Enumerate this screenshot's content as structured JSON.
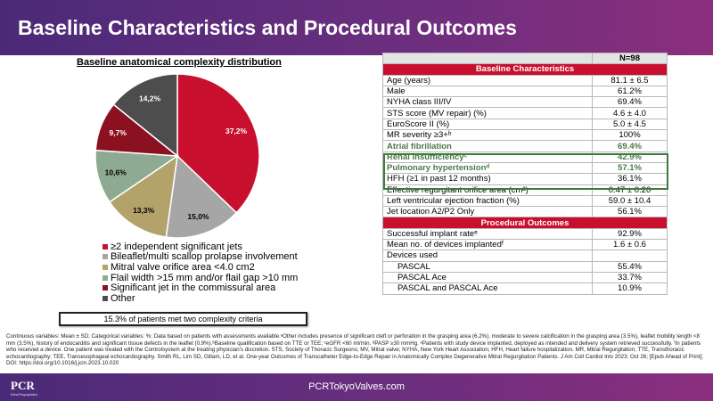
{
  "title": "Baseline Characteristics and Procedural Outcomes",
  "chart_data": {
    "type": "pie",
    "title": "Baseline anatomical complexity distribution",
    "slices": [
      {
        "label": "≥2 independent significant jets",
        "value": 37.2,
        "display": "37,2%",
        "color": "#c8102e"
      },
      {
        "label": "Bileaflet/multi scallop prolapse involvement",
        "value": 15.0,
        "display": "15,0%",
        "color": "#a6a6a6"
      },
      {
        "label": "Mitral valve orifice area <4.0 cm2",
        "value": 13.3,
        "display": "13,3%",
        "color": "#b3a26a"
      },
      {
        "label": "Flail width >15 mm and/or flail gap >10 mm",
        "value": 10.6,
        "display": "10,6%",
        "color": "#8faa92"
      },
      {
        "label": "Significant jet in the commissural area",
        "value": 9.7,
        "display": "9,7%",
        "color": "#8b1020"
      },
      {
        "label": "Other",
        "value": 14.2,
        "display": "14,2%",
        "color": "#4d4d4d"
      }
    ]
  },
  "criteria_note": "15.3% of patients met two complexity criteria",
  "table": {
    "n_label": "N=98",
    "sections": [
      {
        "heading": "Baseline Characteristics",
        "rows": [
          {
            "label": "Age (years)",
            "value": "81.1 ± 6.5"
          },
          {
            "label": "Male",
            "value": "61.2%"
          },
          {
            "label": "NYHA class III/IV",
            "value": "69.4%"
          },
          {
            "label": "STS score (MV repair) (%)",
            "value": "4.6 ± 4.0"
          },
          {
            "label": "EuroScore II (%)",
            "value": "5.0 ± 4.5"
          },
          {
            "label": "MR severity ≥3+ᵇ",
            "value": "100%"
          },
          {
            "label": "Atrial fibrillation",
            "value": "69.4%",
            "highlight": true
          },
          {
            "label": "Renal insufficiencyᶜ",
            "value": "42.9%",
            "highlight": true
          },
          {
            "label": "Pulmonary hypertensionᵈ",
            "value": "57.1%",
            "highlight": true
          },
          {
            "label": "HFH (≥1 in past 12 months)",
            "value": "36.1%"
          },
          {
            "label": "Effective regurgitant orifice area (cm²)",
            "value": "0.47 ± 0.20"
          },
          {
            "label": "Left ventricular ejection fraction (%)",
            "value": "59.0 ± 10.4"
          },
          {
            "label": "Jet location A2/P2 Only",
            "value": "56.1%"
          }
        ]
      },
      {
        "heading": "Procedural Outcomes",
        "rows": [
          {
            "label": "Successful implant rateᵉ",
            "value": "92.9%"
          },
          {
            "label": "Mean no. of devices implantedᶠ",
            "value": "1.6 ± 0.6"
          },
          {
            "label": "Devices used",
            "value": ""
          },
          {
            "label": "PASCAL",
            "value": "55.4%",
            "indent": true
          },
          {
            "label": "PASCAL Ace",
            "value": "33.7%",
            "indent": true
          },
          {
            "label": "PASCAL and PASCAL Ace",
            "value": "10.9%",
            "indent": true
          }
        ]
      }
    ]
  },
  "footnote": "Continuous variables: Mean ± SD; Categorical variables: %; Data based on patients with assessments available.ᵃOther includes presence of significant cleft or perforation in the grasping area (6.2%), moderate to severe calcification in the grasping area (3.5%), leaflet mobility length <8 mm (3.5%), history of endocarditis and significant tissue defects in the leaflet (0.9%).ᵇBaseline qualification based on TTE or TEE; ᶜeGFR <60 ml/min. ᵈPASP ≥30 mmHg. ᵉPatients with study device implanted, deployed as intended and delivery system retrieved successfully. ᶠIn patients who received a device. One patient was treated with the Controlsystem at the treating physician's discretion. STS, Society of Thoracic Surgeons; MV, Mitral valve; NYHA, New York Heart Association; HFH, Heart failure hospitalization. MR, Mitral Regurgitation; TTE, Transthoracic echocardiography; TEE, Transesophageal echocardiography. Smith RL, Lim SD, Gillam, LD, et al. One-year Outcomes of Transcatheter Edge-to-Edge Repair in Anatomically Complex Degenerative Mitral Regurgitation Patients. J Am Coll Cardiol Intv 2023; Oct 26; [Epub Ahead of Print]; DOI: https://doi.org/10.1016/j.jcin.2023.10.020",
  "footer": {
    "url": "PCRTokyoValves.com",
    "logo": "PCR",
    "logo_sub": "Mitral Regurgitation"
  }
}
